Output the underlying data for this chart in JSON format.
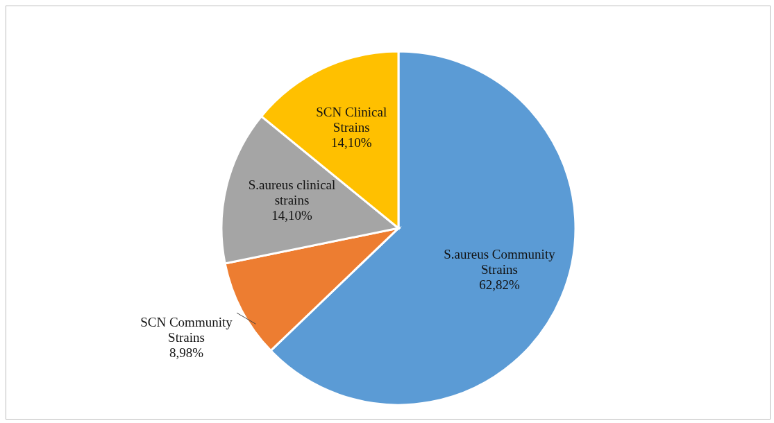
{
  "chart_data": {
    "type": "pie",
    "categories": [
      "S.aureus Community Strains",
      "SCN Community Strains",
      "S.aureus clinical strains",
      "SCN Clinical Strains"
    ],
    "values": [
      62.82,
      8.98,
      14.1,
      14.1
    ],
    "value_labels": [
      "62,82%",
      "8,98%",
      "14,10%",
      "14,10%"
    ],
    "colors": [
      "#5b9bd5",
      "#ed7d31",
      "#a5a5a5",
      "#ffc000"
    ],
    "legend": false
  }
}
